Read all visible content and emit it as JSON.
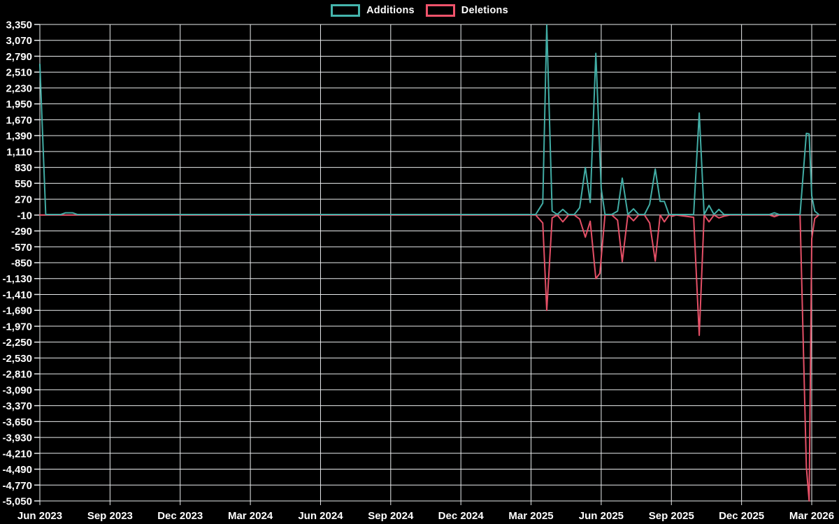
{
  "chart_data": {
    "type": "line",
    "title": "",
    "legend_position": "top-center",
    "grid": true,
    "background_color": "#000000",
    "gridline_color": "#e9eced",
    "text_color": "#ffffff",
    "x_axis": {
      "tick_labels": [
        "Jun 2023",
        "Sep 2023",
        "Dec 2023",
        "Mar 2024",
        "Jun 2024",
        "Sep 2024",
        "Dec 2024",
        "Mar 2025",
        "Jun 2025",
        "Sep 2025",
        "Dec 2025",
        "Mar 2026"
      ],
      "months_per_gridline": 3,
      "start": "Jun 2023",
      "end": "Mar 2026",
      "total_months_shown": 33.3
    },
    "y_axis": {
      "max": 3350,
      "min": -5050,
      "step": 280,
      "tick_labels": [
        "3,350",
        "3,070",
        "2,790",
        "2,510",
        "2,230",
        "1,950",
        "1,670",
        "1,390",
        "1,110",
        "830",
        "550",
        "270",
        "-10",
        "-290",
        "-570",
        "-850",
        "-1,130",
        "-1,410",
        "-1,690",
        "-1,970",
        "-2,250",
        "-2,530",
        "-2,810",
        "-3,090",
        "-3,370",
        "-3,650",
        "-3,930",
        "-4,210",
        "-4,490",
        "-4,770",
        "-5,050"
      ]
    },
    "series": [
      {
        "name": "Additions",
        "color": "#45b5ad",
        "points_months_from_jun2023_vs_value": [
          [
            0,
            2650
          ],
          [
            0.25,
            0
          ],
          [
            0.9,
            0
          ],
          [
            1.1,
            30
          ],
          [
            1.4,
            30
          ],
          [
            1.6,
            0
          ],
          [
            21.2,
            0
          ],
          [
            21.5,
            200
          ],
          [
            21.67,
            3340
          ],
          [
            21.9,
            60
          ],
          [
            22.12,
            0
          ],
          [
            22.36,
            90
          ],
          [
            22.6,
            0
          ],
          [
            22.85,
            0
          ],
          [
            23.08,
            120
          ],
          [
            23.32,
            830
          ],
          [
            23.53,
            210
          ],
          [
            23.77,
            2840
          ],
          [
            24.0,
            455
          ],
          [
            24.16,
            0
          ],
          [
            24.45,
            0
          ],
          [
            24.7,
            60
          ],
          [
            24.9,
            640
          ],
          [
            25.14,
            0
          ],
          [
            25.38,
            100
          ],
          [
            25.6,
            0
          ],
          [
            25.85,
            0
          ],
          [
            26.07,
            180
          ],
          [
            26.31,
            800
          ],
          [
            26.52,
            230
          ],
          [
            26.7,
            230
          ],
          [
            26.9,
            0
          ],
          [
            27.95,
            0
          ],
          [
            28.19,
            1790
          ],
          [
            28.4,
            0
          ],
          [
            28.61,
            160
          ],
          [
            28.82,
            0
          ],
          [
            29.03,
            90
          ],
          [
            29.25,
            0
          ],
          [
            31.2,
            0
          ],
          [
            31.4,
            30
          ],
          [
            31.6,
            0
          ],
          [
            32.5,
            0
          ],
          [
            32.77,
            1430
          ],
          [
            32.89,
            1420
          ],
          [
            33.0,
            330
          ],
          [
            33.13,
            60
          ],
          [
            33.3,
            0
          ]
        ]
      },
      {
        "name": "Deletions",
        "color": "#f0536b",
        "points_months_from_jun2023_vs_value": [
          [
            0,
            -10
          ],
          [
            21.2,
            -10
          ],
          [
            21.5,
            -150
          ],
          [
            21.67,
            -1690
          ],
          [
            21.9,
            -60
          ],
          [
            22.12,
            -10
          ],
          [
            22.36,
            -130
          ],
          [
            22.6,
            -10
          ],
          [
            22.85,
            -10
          ],
          [
            23.08,
            -80
          ],
          [
            23.32,
            -400
          ],
          [
            23.53,
            -120
          ],
          [
            23.77,
            -1130
          ],
          [
            23.94,
            -1040
          ],
          [
            24.16,
            -10
          ],
          [
            24.45,
            -10
          ],
          [
            24.7,
            -100
          ],
          [
            24.9,
            -830
          ],
          [
            25.14,
            -10
          ],
          [
            25.38,
            -110
          ],
          [
            25.6,
            -10
          ],
          [
            25.85,
            -10
          ],
          [
            26.07,
            -150
          ],
          [
            26.31,
            -820
          ],
          [
            26.52,
            -10
          ],
          [
            26.7,
            -130
          ],
          [
            26.9,
            -10
          ],
          [
            27.05,
            -30
          ],
          [
            27.2,
            -10
          ],
          [
            27.95,
            -50
          ],
          [
            28.19,
            -2130
          ],
          [
            28.4,
            -10
          ],
          [
            28.61,
            -130
          ],
          [
            28.82,
            -10
          ],
          [
            29.03,
            -60
          ],
          [
            29.25,
            -30
          ],
          [
            29.5,
            -10
          ],
          [
            31.2,
            -10
          ],
          [
            31.4,
            -40
          ],
          [
            31.6,
            -10
          ],
          [
            32.5,
            -10
          ],
          [
            32.77,
            -4450
          ],
          [
            32.89,
            -5050
          ],
          [
            33.0,
            -430
          ],
          [
            33.13,
            -70
          ],
          [
            33.3,
            -10
          ]
        ]
      }
    ]
  }
}
